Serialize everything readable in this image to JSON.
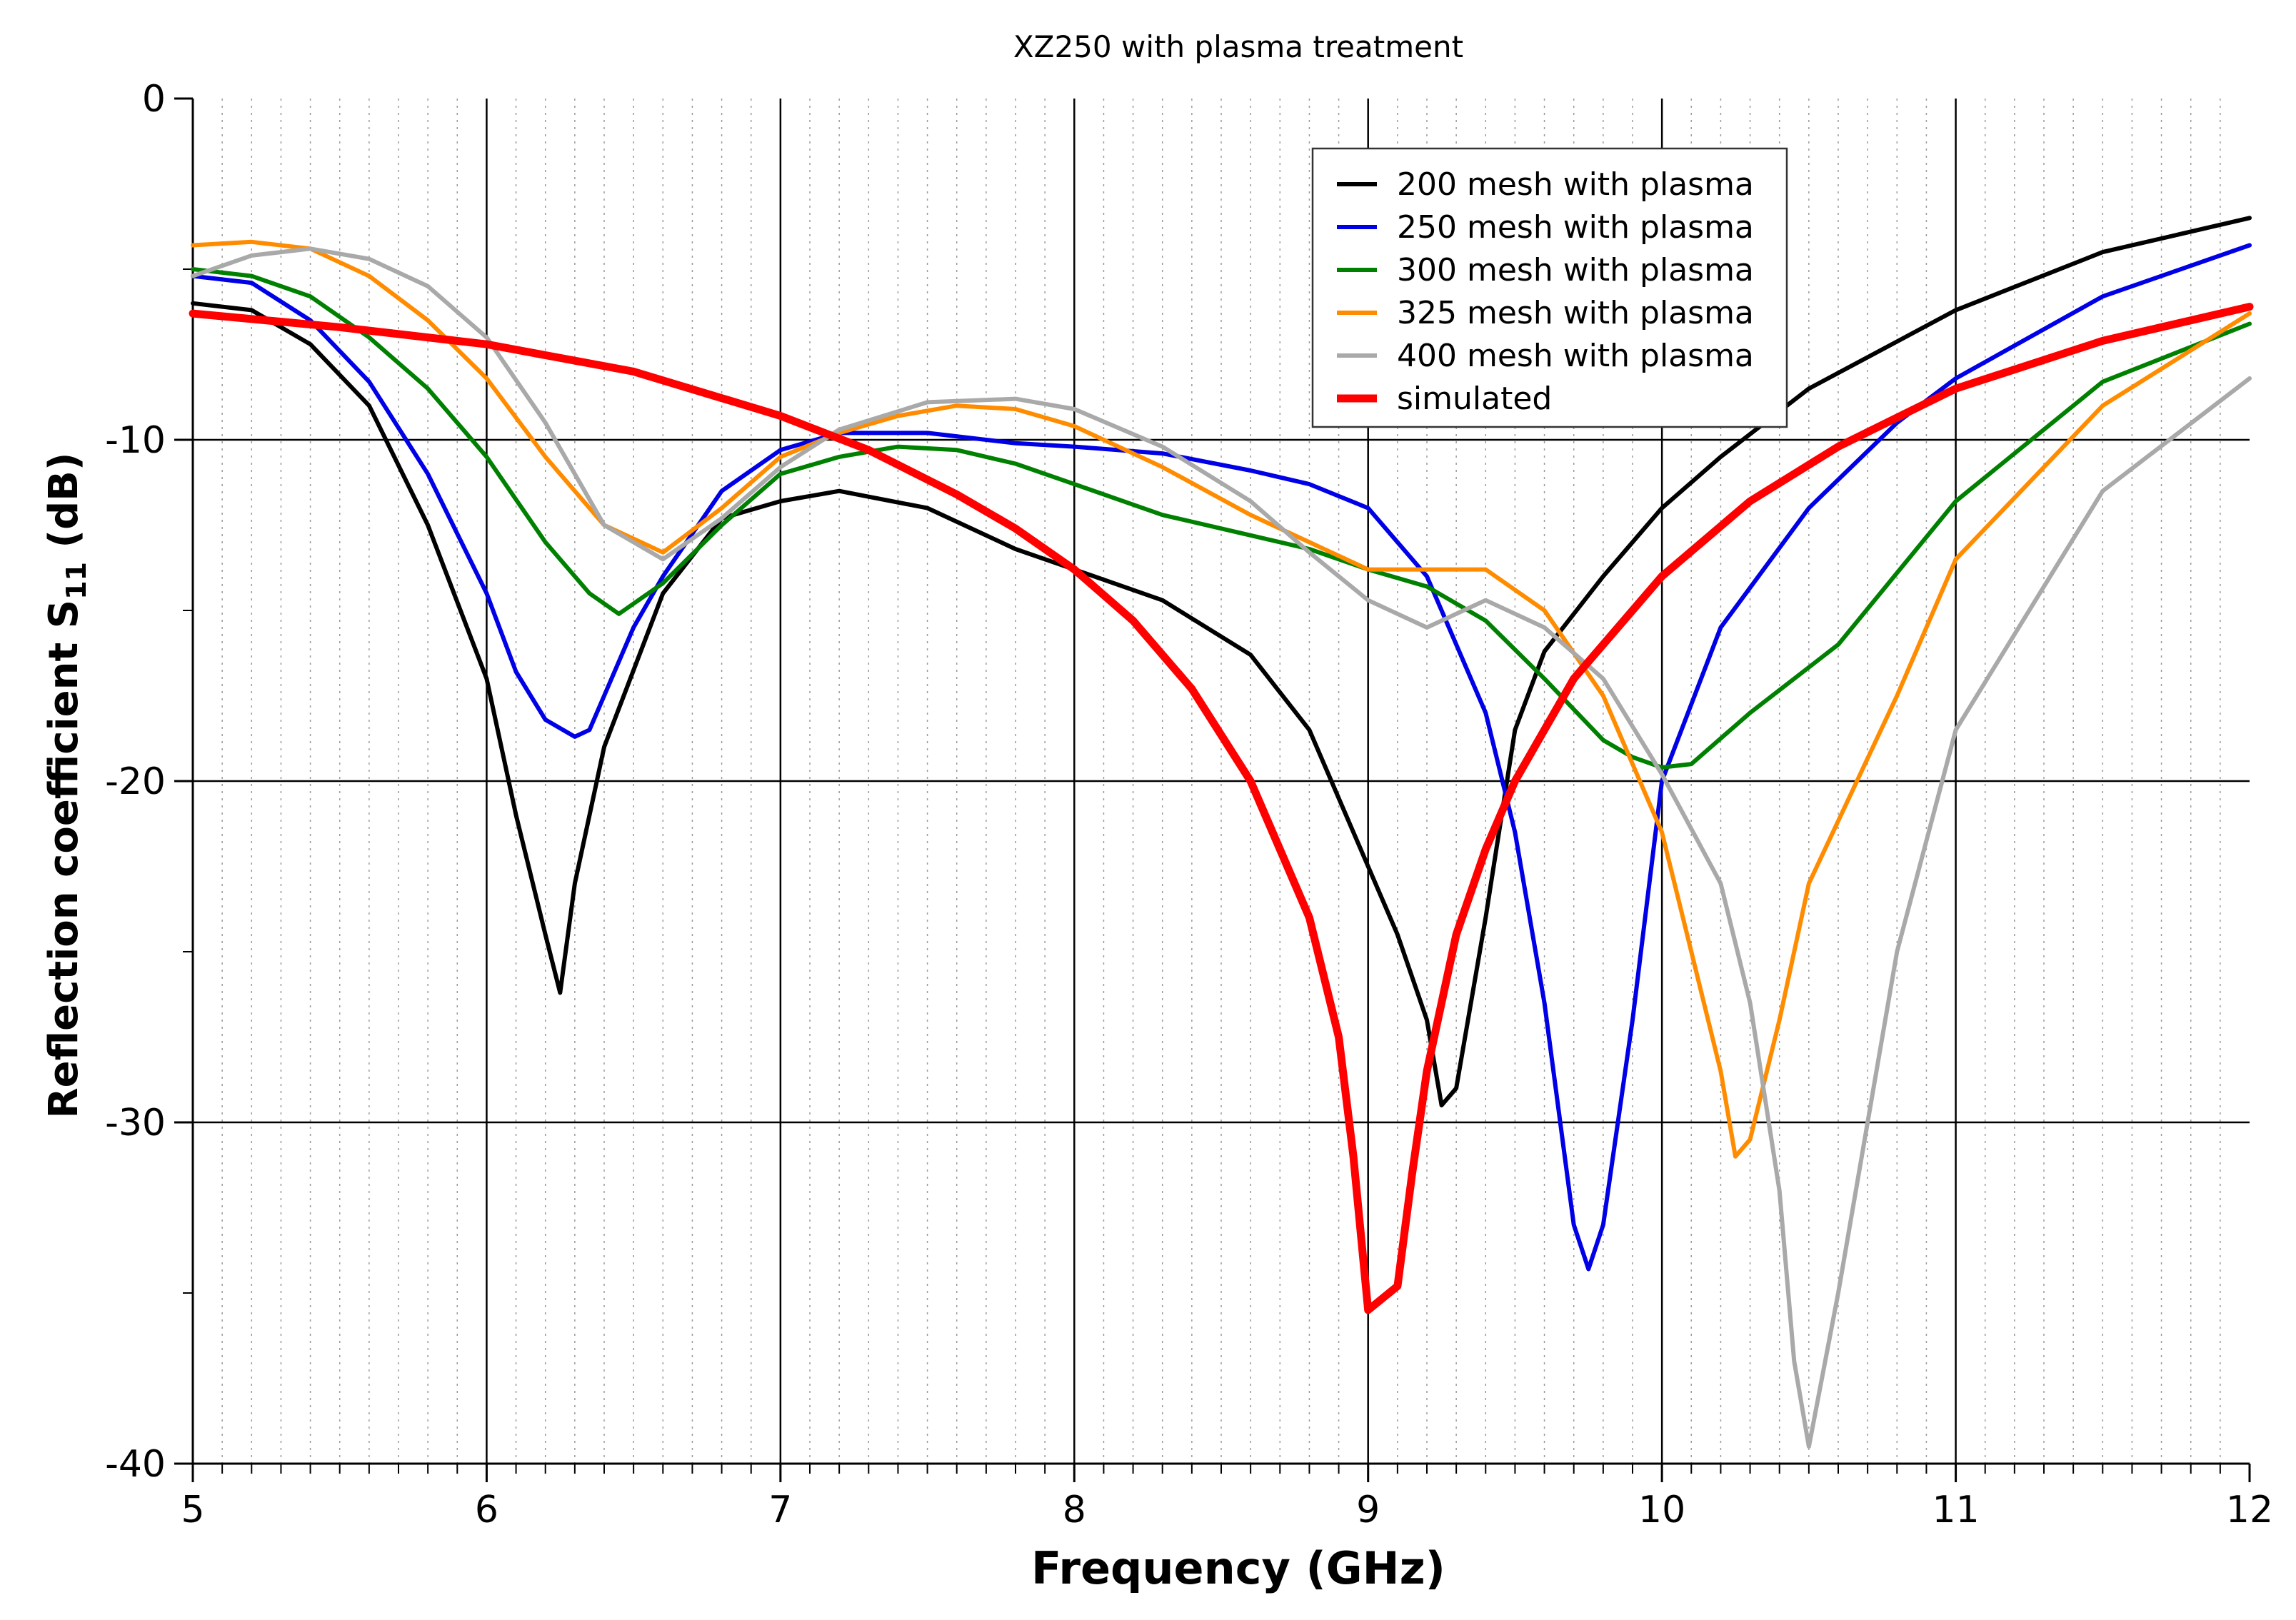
{
  "chart_data": {
    "type": "line",
    "title": "XZ250 with plasma treatment",
    "xlabel": "Frequency (GHz)",
    "ylabel": "Reflection coefficient S",
    "ylabel_subscript": "11",
    "ylabel_suffix": " (dB)",
    "xlim": [
      5,
      12
    ],
    "ylim": [
      -40,
      0
    ],
    "xticks": [
      5,
      6,
      7,
      8,
      9,
      10,
      11,
      12
    ],
    "xtick_labels": [
      "5",
      "6",
      "7",
      "8",
      "9",
      "10",
      "11",
      "12"
    ],
    "yticks": [
      0,
      -10,
      -20,
      -30,
      -40
    ],
    "ytick_labels": [
      "0",
      "-10",
      "-20",
      "-30",
      "-40"
    ],
    "grid": true,
    "legend_position": "top-right",
    "series": [
      {
        "name": "200 mesh with plasma",
        "color": "#000000",
        "x": [
          5.0,
          5.2,
          5.4,
          5.6,
          5.8,
          6.0,
          6.1,
          6.2,
          6.25,
          6.3,
          6.4,
          6.6,
          6.8,
          7.0,
          7.2,
          7.5,
          7.8,
          8.0,
          8.3,
          8.6,
          8.8,
          9.0,
          9.1,
          9.2,
          9.25,
          9.3,
          9.4,
          9.5,
          9.6,
          9.8,
          10.0,
          10.2,
          10.5,
          11.0,
          11.5,
          12.0
        ],
        "y": [
          -6.0,
          -6.2,
          -7.2,
          -9.0,
          -12.5,
          -17.0,
          -21.0,
          -24.5,
          -26.2,
          -23.0,
          -19.0,
          -14.5,
          -12.3,
          -11.8,
          -11.5,
          -12.0,
          -13.2,
          -13.8,
          -14.7,
          -16.3,
          -18.5,
          -22.5,
          -24.5,
          -27.0,
          -29.5,
          -29.0,
          -24.0,
          -18.5,
          -16.2,
          -14.0,
          -12.0,
          -10.5,
          -8.5,
          -6.2,
          -4.5,
          -3.5
        ]
      },
      {
        "name": "250 mesh with plasma",
        "color": "#0000e6",
        "x": [
          5.0,
          5.2,
          5.4,
          5.6,
          5.8,
          6.0,
          6.1,
          6.2,
          6.3,
          6.35,
          6.4,
          6.5,
          6.6,
          6.8,
          7.0,
          7.2,
          7.5,
          7.8,
          8.0,
          8.3,
          8.6,
          8.8,
          9.0,
          9.2,
          9.4,
          9.5,
          9.6,
          9.7,
          9.75,
          9.8,
          9.9,
          10.0,
          10.2,
          10.5,
          10.8,
          11.0,
          11.5,
          12.0
        ],
        "y": [
          -5.2,
          -5.4,
          -6.5,
          -8.3,
          -11.0,
          -14.5,
          -16.8,
          -18.2,
          -18.7,
          -18.5,
          -17.5,
          -15.5,
          -14.0,
          -11.5,
          -10.3,
          -9.8,
          -9.8,
          -10.1,
          -10.2,
          -10.4,
          -10.9,
          -11.3,
          -12.0,
          -14.0,
          -18.0,
          -21.5,
          -26.5,
          -33.0,
          -34.3,
          -33.0,
          -27.0,
          -20.0,
          -15.5,
          -12.0,
          -9.5,
          -8.2,
          -5.8,
          -4.3
        ]
      },
      {
        "name": "300 mesh with plasma",
        "color": "#008000",
        "x": [
          5.0,
          5.2,
          5.4,
          5.6,
          5.8,
          6.0,
          6.2,
          6.35,
          6.45,
          6.6,
          6.8,
          7.0,
          7.2,
          7.4,
          7.6,
          7.8,
          8.0,
          8.3,
          8.6,
          8.8,
          9.0,
          9.2,
          9.4,
          9.6,
          9.8,
          9.9,
          10.0,
          10.1,
          10.3,
          10.6,
          11.0,
          11.5,
          12.0
        ],
        "y": [
          -5.0,
          -5.2,
          -5.8,
          -7.0,
          -8.5,
          -10.5,
          -13.0,
          -14.5,
          -15.1,
          -14.2,
          -12.5,
          -11.0,
          -10.5,
          -10.2,
          -10.3,
          -10.7,
          -11.3,
          -12.2,
          -12.8,
          -13.2,
          -13.8,
          -14.3,
          -15.3,
          -17.0,
          -18.8,
          -19.3,
          -19.6,
          -19.5,
          -18.0,
          -16.0,
          -11.8,
          -8.3,
          -6.6
        ]
      },
      {
        "name": "325 mesh with plasma",
        "color": "#ff8c00",
        "x": [
          5.0,
          5.2,
          5.4,
          5.6,
          5.8,
          6.0,
          6.2,
          6.4,
          6.6,
          6.8,
          7.0,
          7.2,
          7.4,
          7.6,
          7.8,
          8.0,
          8.3,
          8.6,
          8.8,
          9.0,
          9.2,
          9.4,
          9.6,
          9.8,
          10.0,
          10.1,
          10.2,
          10.25,
          10.3,
          10.4,
          10.5,
          10.8,
          11.0,
          11.5,
          12.0
        ],
        "y": [
          -4.3,
          -4.2,
          -4.4,
          -5.2,
          -6.5,
          -8.2,
          -10.5,
          -12.5,
          -13.3,
          -12.0,
          -10.5,
          -9.8,
          -9.3,
          -9.0,
          -9.1,
          -9.6,
          -10.8,
          -12.2,
          -13.0,
          -13.8,
          -13.8,
          -13.8,
          -15.0,
          -17.5,
          -21.5,
          -25.0,
          -28.5,
          -31.0,
          -30.5,
          -27.0,
          -23.0,
          -17.5,
          -13.5,
          -9.0,
          -6.3
        ]
      },
      {
        "name": "400 mesh with plasma",
        "color": "#a9a9a9",
        "x": [
          5.0,
          5.2,
          5.4,
          5.6,
          5.8,
          6.0,
          6.2,
          6.4,
          6.6,
          6.8,
          7.0,
          7.2,
          7.5,
          7.8,
          8.0,
          8.3,
          8.6,
          8.8,
          9.0,
          9.2,
          9.4,
          9.6,
          9.8,
          10.0,
          10.2,
          10.3,
          10.4,
          10.45,
          10.5,
          10.6,
          10.8,
          11.0,
          11.5,
          12.0
        ],
        "y": [
          -5.2,
          -4.6,
          -4.4,
          -4.7,
          -5.5,
          -7.0,
          -9.5,
          -12.5,
          -13.5,
          -12.3,
          -10.8,
          -9.7,
          -8.9,
          -8.8,
          -9.1,
          -10.2,
          -11.8,
          -13.3,
          -14.7,
          -15.5,
          -14.7,
          -15.5,
          -17.0,
          -19.8,
          -23.0,
          -26.5,
          -32.0,
          -37.0,
          -39.5,
          -35.0,
          -25.0,
          -18.5,
          -11.5,
          -8.2
        ]
      },
      {
        "name": "simulated",
        "color": "#ff0000",
        "x": [
          5.0,
          5.5,
          6.0,
          6.5,
          7.0,
          7.3,
          7.6,
          7.8,
          8.0,
          8.2,
          8.4,
          8.6,
          8.8,
          8.9,
          8.95,
          9.0,
          9.1,
          9.15,
          9.2,
          9.3,
          9.4,
          9.5,
          9.7,
          10.0,
          10.3,
          10.6,
          11.0,
          11.5,
          12.0
        ],
        "y": [
          -6.3,
          -6.7,
          -7.2,
          -8.0,
          -9.3,
          -10.3,
          -11.6,
          -12.6,
          -13.8,
          -15.3,
          -17.3,
          -20.0,
          -24.0,
          -27.5,
          -31.0,
          -35.5,
          -34.8,
          -31.5,
          -28.5,
          -24.5,
          -22.0,
          -20.0,
          -17.0,
          -14.0,
          -11.8,
          -10.2,
          -8.5,
          -7.1,
          -6.1
        ]
      }
    ]
  }
}
